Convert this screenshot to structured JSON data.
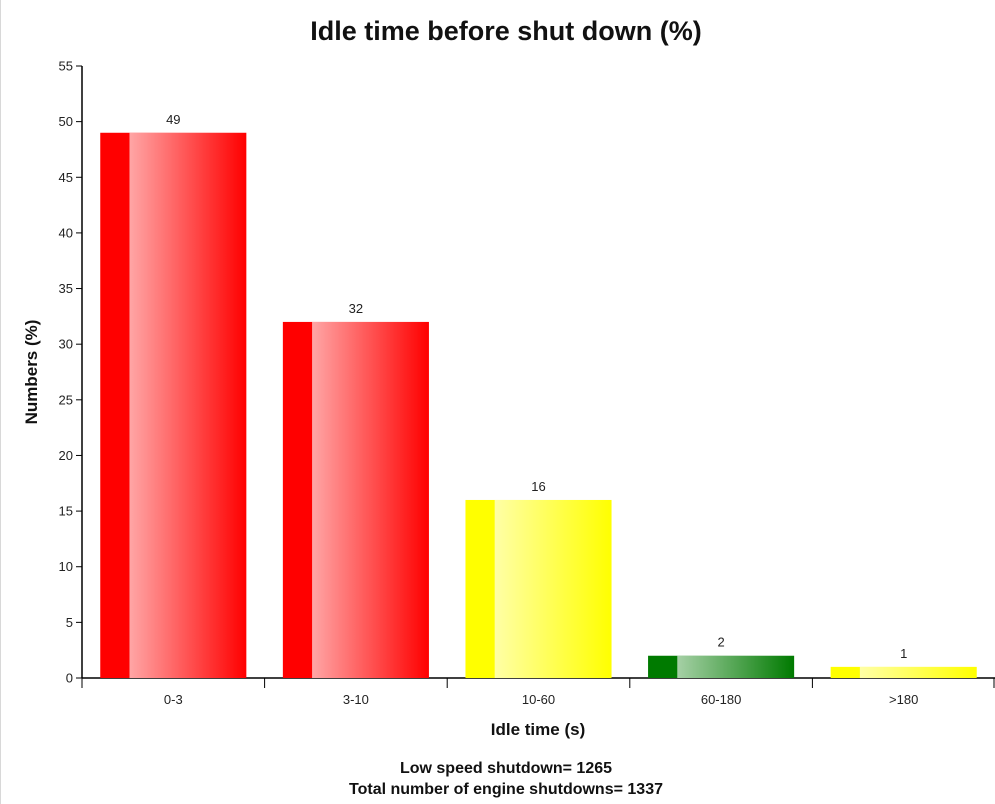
{
  "chart_data": {
    "type": "bar",
    "title": "Idle time before shut down (%)",
    "xlabel": "Idle time (s)",
    "ylabel": "Numbers (%)",
    "categories": [
      "0-3",
      "3-10",
      "10-60",
      "60-180",
      ">180"
    ],
    "values": [
      49,
      32,
      16,
      2,
      1
    ],
    "data_labels": [
      "49",
      "32",
      "16",
      "2",
      "1"
    ],
    "bar_colors": [
      "#ff0000",
      "#ff0000",
      "#ffff00",
      "#007a00",
      "#ffff00"
    ],
    "ylim": [
      0,
      55
    ],
    "yticks": [
      0,
      5,
      10,
      15,
      20,
      25,
      30,
      35,
      40,
      45,
      50,
      55
    ],
    "grid": false,
    "legend": "none"
  },
  "footer": {
    "line1": "Low speed shutdown= 1265",
    "line2": "Total number of engine shutdowns= 1337"
  }
}
